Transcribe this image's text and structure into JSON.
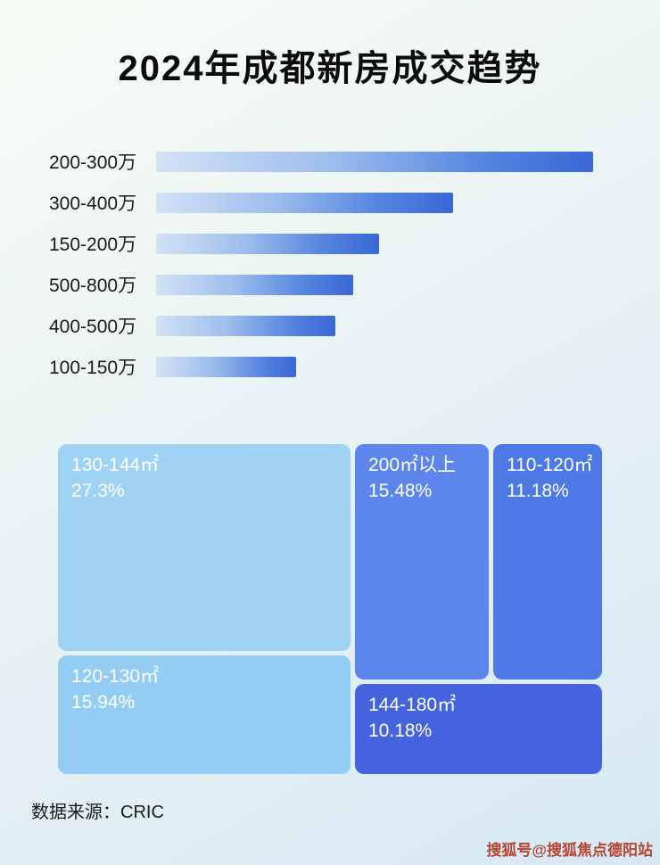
{
  "page": {
    "title": "2024年成都新房成交趋势",
    "source": "数据来源：CRIC",
    "watermark": "搜狐号@搜狐焦点德阳站"
  },
  "chart_data": [
    {
      "type": "bar",
      "title": "2024年成都新房成交趋势",
      "orientation": "horizontal",
      "categories": [
        "200-300万",
        "300-400万",
        "150-200万",
        "500-800万",
        "400-500万",
        "100-150万"
      ],
      "values": [
        100,
        68,
        51,
        45,
        41,
        32
      ],
      "value_note": "relative bar widths in percent of longest bar; no numeric axis shown",
      "xlim": [
        0,
        100
      ],
      "grid": false,
      "legend": "none",
      "bar_gradient": [
        "#d2e2f6",
        "#3a67d6"
      ]
    },
    {
      "type": "treemap",
      "items": [
        {
          "label": "130-144㎡",
          "value": 27.3,
          "value_label": "27.3%",
          "color": "#9fd2f3"
        },
        {
          "label": "200㎡以上",
          "value": 15.48,
          "value_label": "15.48%",
          "color": "#5c86ec"
        },
        {
          "label": "110-120㎡",
          "value": 11.18,
          "value_label": "11.18%",
          "color": "#4d79e6"
        },
        {
          "label": "120-130㎡",
          "value": 15.94,
          "value_label": "15.94%",
          "color": "#93cdf4"
        },
        {
          "label": "144-180㎡",
          "value": 10.18,
          "value_label": "10.18%",
          "color": "#4463de"
        }
      ]
    }
  ]
}
